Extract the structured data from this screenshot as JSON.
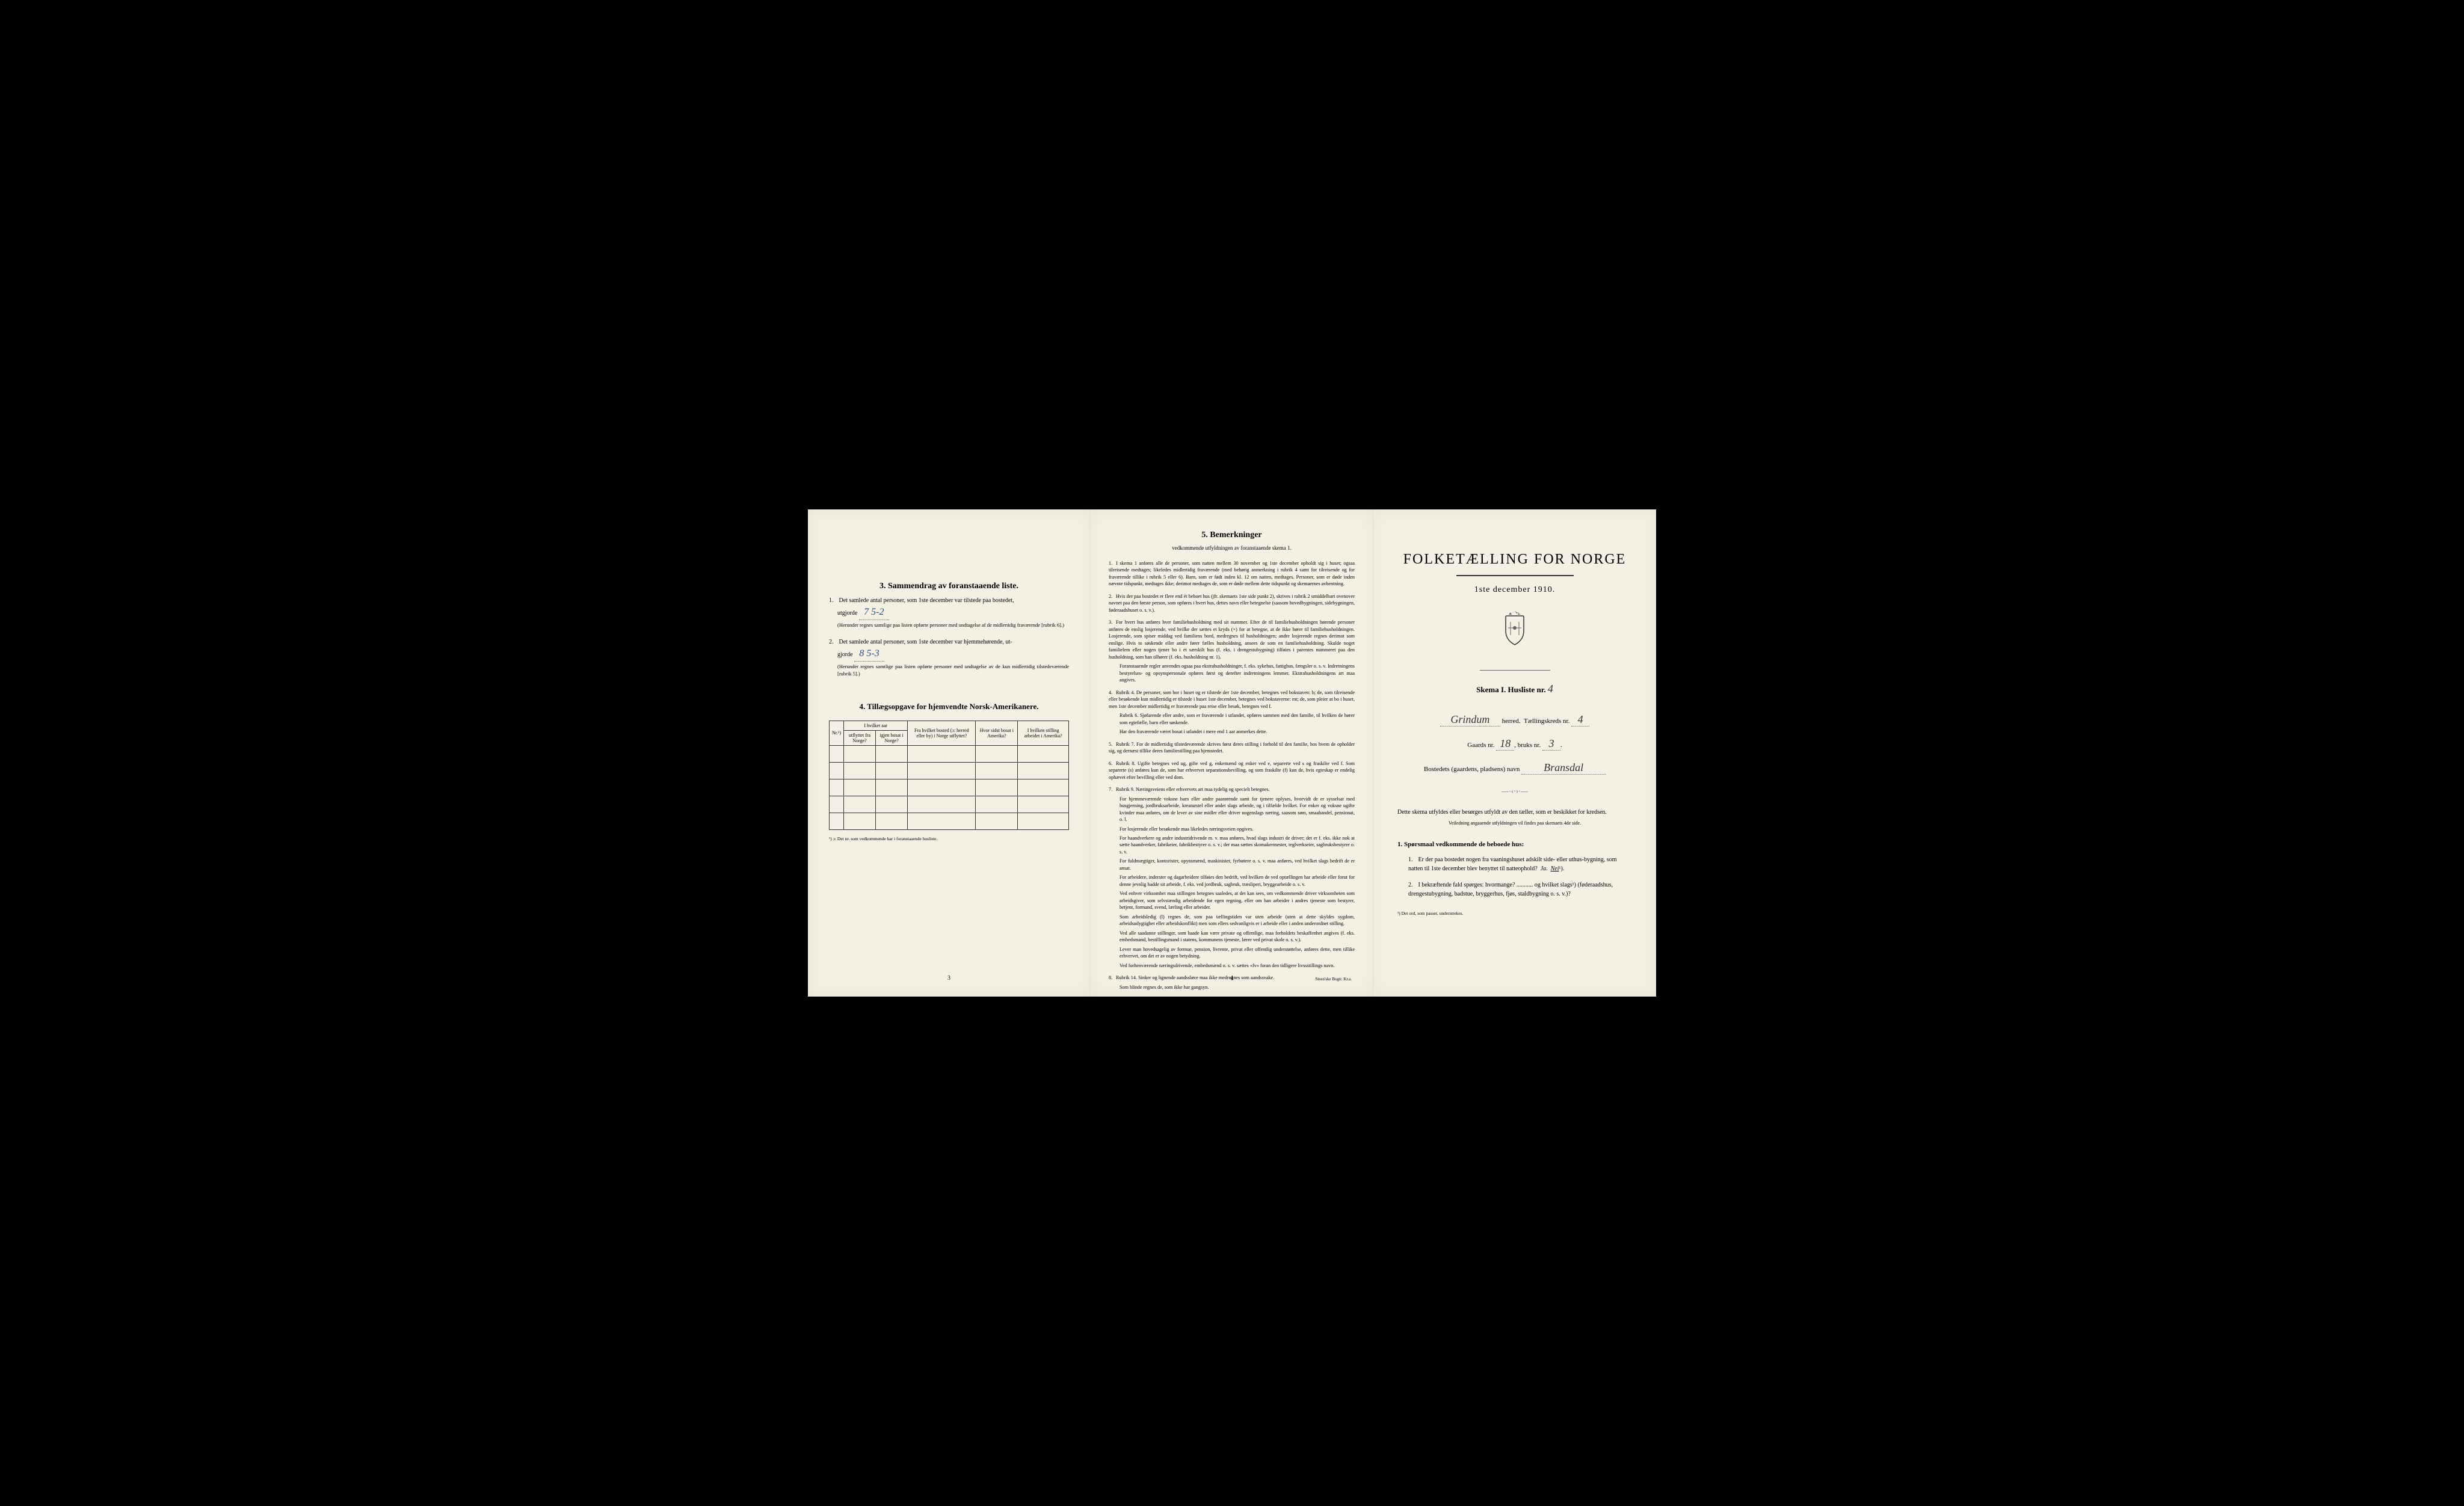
{
  "colors": {
    "paper": "#f5f0e4",
    "ink": "#1a1a1a",
    "handwriting": "#2a4a7a",
    "background": "#000000"
  },
  "typography": {
    "body_font": "Georgia, Times New Roman, serif",
    "handwriting_font": "Brush Script MT, cursive",
    "title_size_pt": 24,
    "body_size_pt": 10,
    "small_size_pt": 8
  },
  "page3": {
    "section3_title": "3.   Sammendrag av foranstaaende liste.",
    "item1_text": "Det samlede antal personer, som 1ste december var tilstede paa bostedet,",
    "item1_label": "utgjorde",
    "item1_value": "7   5-2",
    "item1_note": "(Herunder regnes samtlige paa listen opførte personer med undtagelse af de midlertidig fraværende [rubrik 6].)",
    "item2_text": "Det samlede antal personer, som 1ste december var hjemmehørende, ut-",
    "item2_label": "gjorde",
    "item2_value": "8    5-3",
    "item2_note": "(Herunder regnes samtlige paa listen opførte personer med undtagelse av de kun midlertidig tilstedeværende [rubrik 5].)",
    "section4_title": "4.  Tillægsopgave for hjemvendte Norsk-Amerikanere.",
    "table": {
      "columns": {
        "nr": "Nr.¹)",
        "hvilket_aar_header": "I hvilket aar",
        "utflyttet": "utflyttet fra Norge?",
        "igjen_bosat": "igjen bosat i Norge?",
        "fra_hvilket": "Fra hvilket bosted (ɔ: herred eller by) i Norge utflyttet?",
        "hvor_sidst": "Hvor sidst bosat i Amerika?",
        "hvilken_stilling": "I hvilken stilling arbeidet i Amerika?"
      },
      "empty_rows": 5
    },
    "table_footnote": "¹) ɔ: Det nr. som vedkommende har i foranstaaende husliste.",
    "page_number": "3"
  },
  "page4": {
    "section_title": "5.   Bemerkninger",
    "section_subtitle": "vedkommende utfyldningen av foranstaaende skema 1.",
    "items": [
      {
        "num": "1.",
        "text": "I skema 1 anføres alle de personer, som natten mellem 30 november og 1ste december opholdt sig i huset; ogsaa tilreisende medtages; likeledes midlertidig fraværende (med behørig anmerkning i rubrik 4 samt for tilreisende og for fraværende tillike i rubrik 5 eller 6). Barn, som er født inden kl. 12 om natten, medtages. Personer, som er døde inden nævnte tidspunkt, medtages ikke; derimot medtages de, som er døde mellem dette tidspunkt og skemaernes avhentning."
      },
      {
        "num": "2.",
        "text": "Hvis der paa bostedet er flere end ét beboet hus (jfr. skemaets 1ste side punkt 2), skrives i rubrik 2 umiddelbart ovenover navnet paa den første person, som opføres i hvert hus, dettes navn eller betegnelse (saasom hovedbygningen, sidebygningen, føderaadshuset o. s. v.)."
      },
      {
        "num": "3.",
        "text": "For hvert hus anføres hver familiehusholdning med sit nummer. Efter de til familiehusholdningen hørende personer anføres de enslig losjerende, ved hvilke der sættes et kryds (×) for at betegne, at de ikke hører til familiehusholdningen. Losjerende, som spiser middag ved familiens bord, medregnes til husholdningen; andre losjerende regnes derimot som enslige. Hvis to søskende eller andre fører fælles husholdning, ansees de som en familiehusholdning. Skulde noget familielem eller nogen tjener bo i et særskilt hus (f. eks. i drengestubygning) tilføies i parentes nummeret paa den husholdning, som han tilhører (f. eks. husholdning nr. 1).",
        "sub": "Foranstaaende regler anvendes ogsaa paa ekstrahusholdninger, f. eks. sykehus, fattighus, fængsler o. s. v. Indretningens bestyrelses- og opsynspersonale opføres først og derefter indretningens lemmer. Ekstrahusholdningens art maa angives."
      },
      {
        "num": "4.",
        "text": "Rubrik 4. De personer, som bor i huset og er tilstede der 1ste december, betegnes ved bokstaven: b; de, som tilreisende eller besøkende kun midlertidig er tilstede i huset 1ste december, betegnes ved bokstaverne: mt; de, som pleier at bo i huset, men 1ste december midlertidig er fraværende paa reise eller besøk, betegnes ved f.",
        "sub": "Rubrik 6. Sjøfarende eller andre, som er fraværende i utlandet, opføres sammen med den familie, til hvilken de hører som egtefælle, barn eller søskende.",
        "sub2": "Har den fraværende været bosat i utlandet i mere end 1 aar anmerkes dette."
      },
      {
        "num": "5.",
        "text": "Rubrik 7. For de midlertidig tilstedeværende skrives først deres stilling i forhold til den familie, hos hvem de opholder sig, og dernæst tillike deres familiestilling paa hjemstedet."
      },
      {
        "num": "6.",
        "text": "Rubrik 8. Ugifte betegnes ved ug, gifte ved g, enkemænd og enker ved e, separerte ved s og fraskilte ved f. Som separerte (s) anføres kun de, som har erhvervet separationsbevilling, og som fraskilte (f) kun de, hvis egteskap er endelig ophævet efter bevilling eller ved dom."
      },
      {
        "num": "7.",
        "text": "Rubrik 9. Næringsveiens eller erhvervets art maa tydelig og specielt betegnes.",
        "sub": "For hjemmeværende voksne barn eller andre paarørende samt for tjenere oplyses, hvorvidt de er sysselsat med husgjerning, jordbruksarbeide, kreaturstel eller andet slags arbeide, og i tilfælde hvilket. For enker og voksne ugifte kvinder maa anføres, om de lever av sine midler eller driver nogenslags næring, saasom søm, smaahandel, pensionat, o. l.",
        "sub2": "For losjerende eller besøkende maa likeledes næringsveien opgives.",
        "sub3": "For haandverkere og andre industridrivende m. v. maa anføres, hvad slags industri de driver; det er f. eks. ikke nok at sætte haandverker, fabrikeier, fabrikbestyrer o. s. v.; der maa sættes skomakermester, teglverkseier, sagbruksbestyrer o. s. v.",
        "sub4": "For fuldmægtiger, kontorister, opynsmænd, maskinister, fyrbøtere o. s. v. maa anføres, ved hvilket slags bedrift de er ansat.",
        "sub5": "For arbeidere, inderster og dagarbeidere tilføies den bedrift, ved hvilken de ved optællingen har arbeide eller forut for denne jevnlig hadde sit arbeide, f. eks. ved jordbruk, sagbruk, træsliperi, bryggearbeide o. s. v.",
        "sub6": "Ved enhver virksomhet maa stillingen betegnes saaledes, at det kan sees, om vedkommende driver virksomheten som arbeidsgiver, som selvstændig arbeidende for egen regning, eller om han arbeider i andres tjeneste som bestyrer, betjent, formand, svend, lærling eller arbeider.",
        "sub7": "Som arbeidsledig (l) regnes de, som paa tællingstiden var uten arbeide (uten at dette skyldes sygdom, arbeidsudygtighet eller arbeidskonflikt) men som ellers sedvanligvis er i arbeide eller i anden underordnet stilling.",
        "sub8": "Ved alle saadanne stillinger, som baade kan være private og offentlige, maa forholdets beskaffenhet angives (f. eks. embedsmand, bestillingsmand i statens, kommunens tjeneste, lærer ved privat skole o. s. v.).",
        "sub9": "Lever man hovedsagelig av formue, pension, livrente, privat eller offentlig understøttelse, anføres dette, men tillike erhvervet, om det er av nogen betydning.",
        "sub10": "Ved forhenværende næringsdrivende, embedsmænd o. s. v. sættes «fv» foran den tidligere livssstillings navn."
      },
      {
        "num": "8.",
        "text": "Rubrik 14. Sinker og lignende aandssløve maa ikke medregnes som aandssvake.",
        "sub": "Som blinde regnes de, som ikke har gangsyn."
      }
    ],
    "page_number": "4",
    "printer": "Steen'ske Bogtr.  Kr.a."
  },
  "page1": {
    "main_title": "FOLKETÆLLING FOR NORGE",
    "date_line": "1ste december 1910.",
    "skema_label": "Skema I.  Husliste nr.",
    "husliste_nr": "4",
    "herred_value": "Grindum",
    "herred_label": "herred.",
    "taellingskreds_label": "Tællingskreds nr.",
    "taellingskreds_nr": "4",
    "gaards_label": "Gaards nr.",
    "gaards_nr": "18",
    "bruks_label": "bruks nr.",
    "bruks_nr": "3",
    "bostedets_label": "Bostedets (gaardens, pladsens) navn",
    "bostedets_value": "Bransdal",
    "instruction_text": "Dette skema utfyldes eller besørges utfyldt av den tæller, som er beskikket for kredsen.",
    "instruction_sub": "Veiledning angaaende utfyldningen vil findes paa skemaets 4de side.",
    "question_heading": "1. Spørsmaal vedkommende de beboede hus:",
    "q1_text": "Er der paa bostedet nogen fra vaaningshuset adskilt side- eller uthus-bygning, som natten til 1ste december blev benyttet til natteophold?",
    "q1_ja": "Ja.",
    "q1_nei": "Nei",
    "q1_sup": "¹).",
    "q2_text": "I bekræftende fald spørges: hvormange? ........... og hvilket slags¹) (føderaadshus, drengestubygning, badstue, bryggerhus, fjøs, staldbygning o. s. v.)?",
    "footnote": "¹) Det ord, som passer, understrekes."
  }
}
